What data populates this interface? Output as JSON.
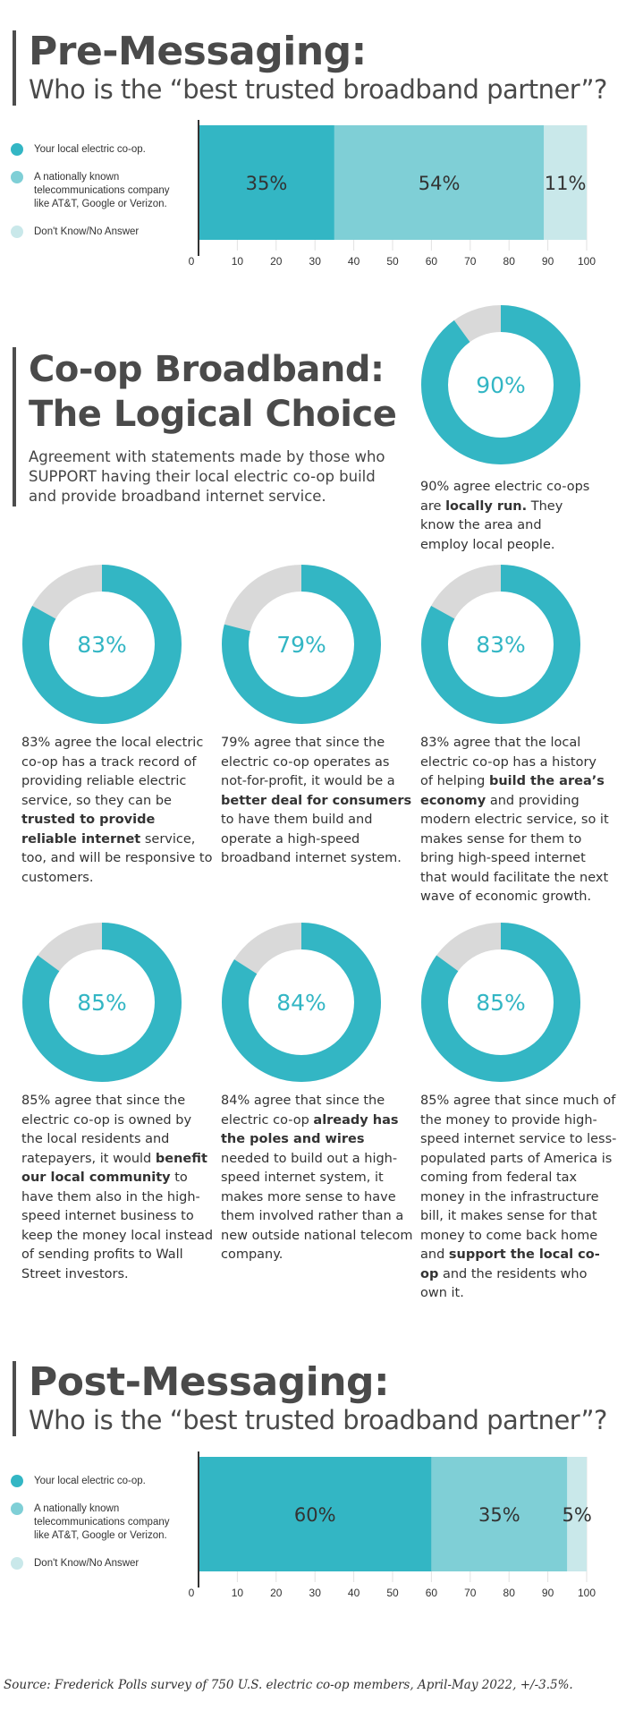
{
  "pre": {
    "title": "Pre-Messaging:",
    "subtitle": "Who is the “best trusted broadband partner”?"
  },
  "logical": {
    "title_line1": "Co-op Broadband:",
    "title_line2": "The Logical Choice",
    "subtitle": "Agreement with statements made by those who SUPPORT having their local electric co-op build and provide broadband internet service."
  },
  "post": {
    "title": "Post-Messaging:",
    "subtitle": "Who is the “best trusted broadband partner”?"
  },
  "legend": [
    {
      "label": "Your local electric co-op.",
      "color": "#33b6c4"
    },
    {
      "label": "A nationally known telecommunications company like AT&T, Google or Verizon.",
      "color": "#7fcfd6"
    },
    {
      "label": "Don't Know/No Answer",
      "color": "#c9e8ea"
    }
  ],
  "colors": {
    "teal": "#33b6c4",
    "light_teal": "#7fcfd6",
    "pale_teal": "#c9e8ea",
    "gray": "#d9d9d9"
  },
  "chart_data": [
    {
      "type": "bar",
      "orientation": "horizontal-stacked",
      "title": "Pre-Messaging:",
      "subtitle": "Who is the “best trusted broadband partner”?",
      "series": [
        {
          "name": "Your local electric co-op.",
          "values": [
            35
          ],
          "label": "35%"
        },
        {
          "name": "A nationally known telecommunications company like AT&T, Google or Verizon.",
          "values": [
            54
          ],
          "label": "54%"
        },
        {
          "name": "Don't Know/No Answer",
          "values": [
            11
          ],
          "label": "11%"
        }
      ],
      "xlim": [
        0,
        100
      ],
      "xticks": [
        "0",
        "10",
        "20",
        "30",
        "40",
        "50",
        "60",
        "70",
        "80",
        "90",
        "100"
      ],
      "legend_position": "left",
      "grid": true
    },
    {
      "type": "pie",
      "variant": "donut",
      "value": 90,
      "center_label": "90%",
      "text": "90% agree electric co-ops are [b]locally run.[/b] They know the area and employ local people."
    },
    {
      "type": "pie",
      "variant": "donut",
      "value": 83,
      "center_label": "83%",
      "text": "83% agree the local electric co-op has a track record of providing reliable electric service, so they can be [b]trusted to provide reliable internet[/b] service, too, and will be responsive to customers."
    },
    {
      "type": "pie",
      "variant": "donut",
      "value": 79,
      "center_label": "79%",
      "text": "79% agree that since the electric co-op operates as not-for-profit, it would be a [b]better deal for consumers[/b] to have them build and operate a high-speed broadband internet system."
    },
    {
      "type": "pie",
      "variant": "donut",
      "value": 83,
      "center_label": "83%",
      "text": "83% agree that the local electric co-op has a history of helping [b]build the area’s economy[/b] and providing modern electric service, so it makes sense for them to bring high-speed internet that would facilitate the next wave of economic growth."
    },
    {
      "type": "pie",
      "variant": "donut",
      "value": 85,
      "center_label": "85%",
      "text": "85% agree that since the electric co-op is owned by the local residents and ratepayers, it would [b]benefit our local community[/b] to have them also in the high-speed internet business to keep the money local instead of sending profits to Wall Street investors."
    },
    {
      "type": "pie",
      "variant": "donut",
      "value": 84,
      "center_label": "84%",
      "text": "84% agree that since the electric co-op [b]already has the poles and wires[/b] needed to build out a high-speed internet system, it makes more sense to have them involved rather than a new outside national telecom company."
    },
    {
      "type": "pie",
      "variant": "donut",
      "value": 85,
      "center_label": "85%",
      "text": "85% agree that since much of the money to provide high-speed internet service to less-populated parts of America is coming from federal tax money in the infrastructure bill, it makes sense for that money to come back home and [b]support the local co-op[/b] and the residents who own it."
    },
    {
      "type": "bar",
      "orientation": "horizontal-stacked",
      "title": "Post-Messaging:",
      "subtitle": "Who is the “best trusted broadband partner”?",
      "series": [
        {
          "name": "Your local electric co-op.",
          "values": [
            60
          ],
          "label": "60%"
        },
        {
          "name": "A nationally known telecommunications company like AT&T, Google or Verizon.",
          "values": [
            35
          ],
          "label": "35%"
        },
        {
          "name": "Don't Know/No Answer",
          "values": [
            5
          ],
          "label": "5%"
        }
      ],
      "xlim": [
        0,
        100
      ],
      "xticks": [
        "0",
        "10",
        "20",
        "30",
        "40",
        "50",
        "60",
        "70",
        "80",
        "90",
        "100"
      ],
      "legend_position": "left",
      "grid": true
    }
  ],
  "source": "Source: Frederick Polls survey of 750 U.S. electric co-op members, April-May 2022, +/-3.5%."
}
